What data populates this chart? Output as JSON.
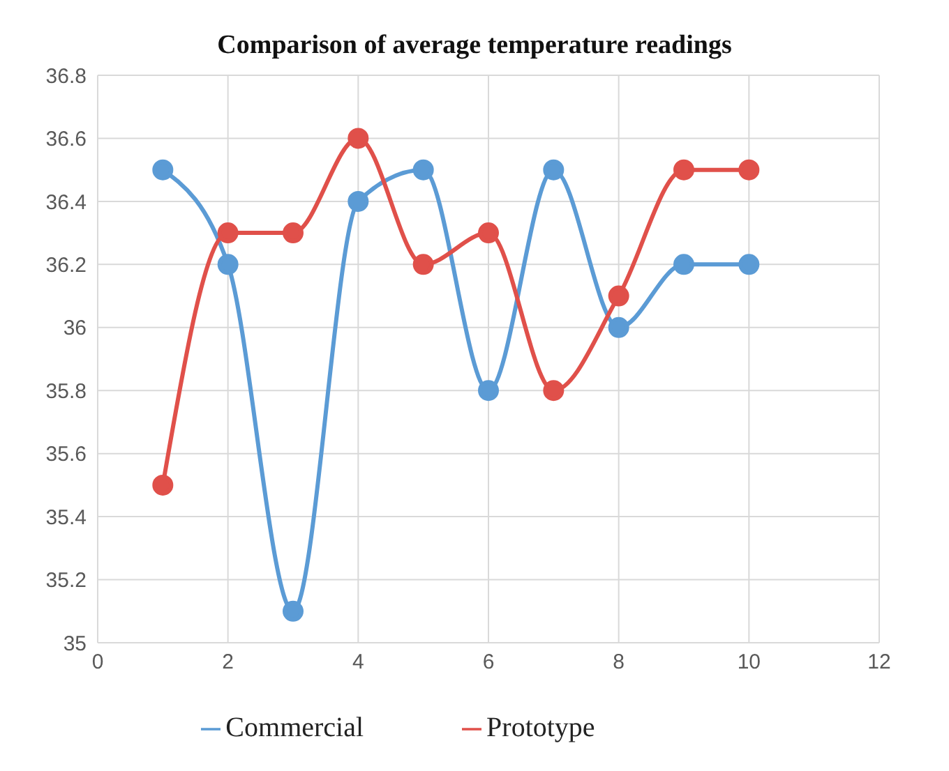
{
  "chart_data": {
    "type": "line",
    "title": "Comparison of average temperature readings",
    "x": [
      1,
      2,
      3,
      4,
      5,
      6,
      7,
      8,
      9,
      10
    ],
    "series": [
      {
        "name": "Commercial",
        "color": "#5b9bd5",
        "values": [
          36.5,
          36.2,
          35.1,
          36.4,
          36.5,
          35.8,
          36.5,
          36.0,
          36.2,
          36.2
        ]
      },
      {
        "name": "Prototype",
        "color": "#e0504a",
        "values": [
          35.5,
          36.3,
          36.3,
          36.6,
          36.2,
          36.3,
          35.8,
          36.1,
          36.5,
          36.5
        ]
      }
    ],
    "xlim": [
      0,
      12
    ],
    "xticks": [
      0,
      2,
      4,
      6,
      8,
      10,
      12
    ],
    "ylim": [
      35,
      36.8
    ],
    "yticks": [
      35,
      35.2,
      35.4,
      35.6,
      35.8,
      36,
      36.2,
      36.4,
      36.6,
      36.8
    ],
    "grid": true,
    "legend": "bottom",
    "marker": "circle",
    "line_style": "solid"
  }
}
